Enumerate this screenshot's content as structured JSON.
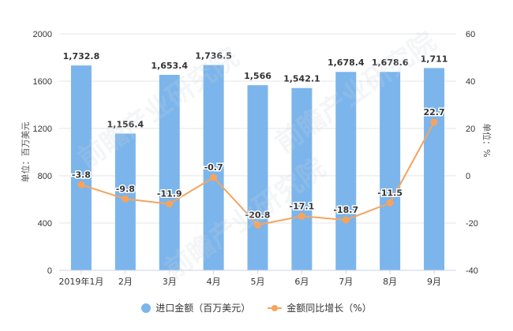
{
  "chart_data": {
    "type": "bar+line",
    "title": "",
    "categories": [
      "2019年1月",
      "2月",
      "3月",
      "4月",
      "5月",
      "6月",
      "7月",
      "8月",
      "9月"
    ],
    "series": [
      {
        "name": "进口金额（百万美元）",
        "type": "bar",
        "axis": "left",
        "color": "#7cb5ec",
        "values": [
          1732.8,
          1156.4,
          1653.4,
          1736.5,
          1566,
          1542.1,
          1678.4,
          1678.6,
          1711
        ],
        "labels": [
          "1,732.8",
          "1,156.4",
          "1,653.4",
          "1,736.5",
          "1,566",
          "1,542.1",
          "1,678.4",
          "1,678.6",
          "1,711"
        ]
      },
      {
        "name": "金额同比增长（%）",
        "type": "line",
        "axis": "right",
        "color": "#f7a35c",
        "values": [
          -3.8,
          -9.8,
          -11.9,
          -0.7,
          -20.8,
          -17.1,
          -18.7,
          -11.5,
          22.7
        ],
        "labels": [
          "-3.8",
          "-9.8",
          "-11.9",
          "-0.7",
          "-20.8",
          "-17.1",
          "-18.7",
          "-11.5",
          "22.7"
        ]
      }
    ],
    "ylabel": "单位：百万美元",
    "ylabel_right": "单位：%",
    "ylim": [
      0,
      2000
    ],
    "ylim_right": [
      -40,
      60
    ],
    "yticks": [
      "0",
      "400",
      "800",
      "1200",
      "1600",
      "2000"
    ],
    "yticks_right": [
      "-40",
      "-20",
      "0",
      "20",
      "40",
      "60"
    ],
    "grid": true,
    "legend_position": "bottom"
  },
  "legend": {
    "bar_label": "进口金额（百万美元）",
    "line_label": "金额同比增长（%）"
  },
  "watermark": "前瞻产业研究院"
}
